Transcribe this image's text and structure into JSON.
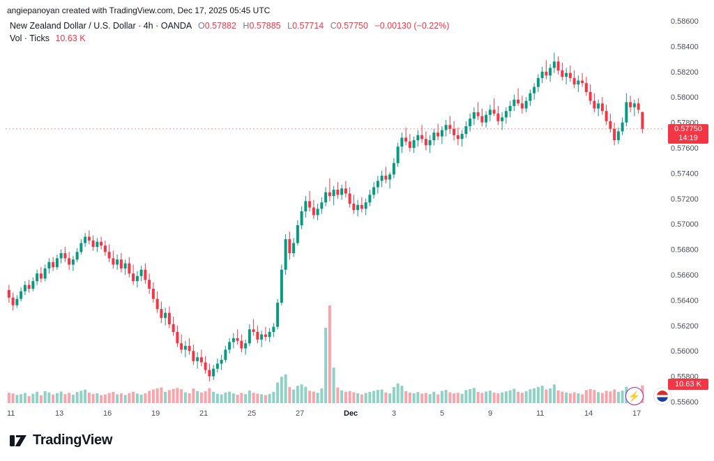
{
  "attribution": "angiepanoyan created with TradingView.com, Dec 17, 2025 05:45 UTC",
  "legend": {
    "title": "New Zealand Dollar / U.S. Dollar · 4h · OANDA",
    "ohlc": [
      {
        "label": "O",
        "value": "0.57882"
      },
      {
        "label": "H",
        "value": "0.57885"
      },
      {
        "label": "L",
        "value": "0.57714"
      },
      {
        "label": "C",
        "value": "0.57750"
      }
    ],
    "change": "−0.00130 (−0.22%)",
    "vol_label": "Vol · Ticks",
    "vol_value": "10.63 K"
  },
  "badges": {
    "last_price": "0.57750",
    "countdown": "14:19",
    "volume": "10.63 K"
  },
  "footer": {
    "logo_text": "TradingView"
  },
  "icons": {
    "lightning": "⚡"
  },
  "chart_data": {
    "type": "candlestick",
    "title": "New Zealand Dollar / U.S. Dollar",
    "symbol": "NZD/USD",
    "timeframe": "4h",
    "exchange": "OANDA",
    "legend_position": "top-left",
    "grid": false,
    "price_axis": {
      "min": 0.556,
      "max": 0.586,
      "tick_step": 0.002,
      "side": "right"
    },
    "last_price": 0.5775,
    "last_price_label": "0.57750",
    "countdown": "14:19",
    "current_volume": 10630,
    "colors": {
      "up": "#089981",
      "down": "#f23645",
      "vol_up": "rgba(8,153,129,0.45)",
      "vol_down": "rgba(242,54,69,0.45)",
      "badge": "#f23645"
    },
    "x_labels": [
      {
        "label": "11",
        "i": 0
      },
      {
        "label": "13",
        "i": 12
      },
      {
        "label": "16",
        "i": 24
      },
      {
        "label": "19",
        "i": 36
      },
      {
        "label": "21",
        "i": 48
      },
      {
        "label": "25",
        "i": 60
      },
      {
        "label": "27",
        "i": 72
      },
      {
        "label": "Dec",
        "i": 84,
        "bold": true
      },
      {
        "label": "3",
        "i": 96
      },
      {
        "label": "5",
        "i": 108
      },
      {
        "label": "9",
        "i": 120
      },
      {
        "label": "11",
        "i": 132
      },
      {
        "label": "14",
        "i": 144
      },
      {
        "label": "17",
        "i": 156
      }
    ],
    "candles": [
      [
        0.5648,
        0.5652,
        0.5638,
        0.5642,
        6200
      ],
      [
        0.5642,
        0.5646,
        0.5632,
        0.5636,
        5800
      ],
      [
        0.5636,
        0.5644,
        0.5634,
        0.5641,
        4900
      ],
      [
        0.5641,
        0.565,
        0.5639,
        0.5647,
        5300
      ],
      [
        0.5647,
        0.5655,
        0.5644,
        0.5652,
        6100
      ],
      [
        0.5652,
        0.5656,
        0.5646,
        0.5649,
        4200
      ],
      [
        0.5649,
        0.5658,
        0.5647,
        0.5655,
        5600
      ],
      [
        0.5655,
        0.5664,
        0.5652,
        0.5661,
        6800
      ],
      [
        0.5661,
        0.5666,
        0.5654,
        0.5657,
        4700
      ],
      [
        0.5657,
        0.5668,
        0.5655,
        0.5665,
        7200
      ],
      [
        0.5665,
        0.5673,
        0.5661,
        0.567,
        6400
      ],
      [
        0.567,
        0.5674,
        0.5663,
        0.5666,
        5100
      ],
      [
        0.5666,
        0.5676,
        0.5664,
        0.5673,
        6000
      ],
      [
        0.5673,
        0.568,
        0.5669,
        0.5677,
        6900
      ],
      [
        0.5677,
        0.5682,
        0.567,
        0.5673,
        5400
      ],
      [
        0.5673,
        0.5678,
        0.5664,
        0.5668,
        6200
      ],
      [
        0.5668,
        0.5675,
        0.5663,
        0.5672,
        5000
      ],
      [
        0.5672,
        0.5681,
        0.567,
        0.5678,
        6600
      ],
      [
        0.5678,
        0.5688,
        0.5676,
        0.5685,
        7400
      ],
      [
        0.5685,
        0.5693,
        0.5682,
        0.569,
        8100
      ],
      [
        0.569,
        0.5695,
        0.5684,
        0.5687,
        6300
      ],
      [
        0.5687,
        0.5691,
        0.5679,
        0.5682,
        5500
      ],
      [
        0.5682,
        0.5689,
        0.5678,
        0.5686,
        5900
      ],
      [
        0.5686,
        0.569,
        0.568,
        0.5683,
        4800
      ],
      [
        0.5683,
        0.5687,
        0.5675,
        0.5678,
        5200
      ],
      [
        0.5678,
        0.5684,
        0.567,
        0.5673,
        6100
      ],
      [
        0.5673,
        0.5679,
        0.5665,
        0.5668,
        6700
      ],
      [
        0.5668,
        0.5676,
        0.5664,
        0.5672,
        5300
      ],
      [
        0.5672,
        0.5677,
        0.5662,
        0.5665,
        5800
      ],
      [
        0.5665,
        0.5672,
        0.566,
        0.5669,
        4900
      ],
      [
        0.5669,
        0.5674,
        0.5658,
        0.5661,
        6000
      ],
      [
        0.5661,
        0.5668,
        0.5652,
        0.5655,
        6800
      ],
      [
        0.5655,
        0.5663,
        0.565,
        0.5659,
        5700
      ],
      [
        0.5659,
        0.5667,
        0.5655,
        0.5664,
        5100
      ],
      [
        0.5664,
        0.5669,
        0.5653,
        0.5656,
        5900
      ],
      [
        0.5656,
        0.5661,
        0.5645,
        0.5649,
        7300
      ],
      [
        0.5649,
        0.5654,
        0.5638,
        0.5641,
        8200
      ],
      [
        0.5641,
        0.5647,
        0.563,
        0.5633,
        8800
      ],
      [
        0.5633,
        0.5639,
        0.5622,
        0.5626,
        9400
      ],
      [
        0.5626,
        0.5634,
        0.562,
        0.563,
        6700
      ],
      [
        0.563,
        0.5635,
        0.5618,
        0.5621,
        7800
      ],
      [
        0.5621,
        0.5627,
        0.5612,
        0.5615,
        8500
      ],
      [
        0.5615,
        0.562,
        0.5603,
        0.5606,
        9100
      ],
      [
        0.5606,
        0.5613,
        0.5598,
        0.5601,
        8300
      ],
      [
        0.5601,
        0.5608,
        0.5595,
        0.5604,
        6500
      ],
      [
        0.5604,
        0.561,
        0.5597,
        0.56,
        5900
      ],
      [
        0.56,
        0.5605,
        0.5589,
        0.5592,
        8700
      ],
      [
        0.5592,
        0.5599,
        0.5586,
        0.5595,
        7200
      ],
      [
        0.5595,
        0.5601,
        0.5588,
        0.5591,
        6400
      ],
      [
        0.5591,
        0.5596,
        0.5582,
        0.5585,
        7100
      ],
      [
        0.5585,
        0.559,
        0.5576,
        0.558,
        8900
      ],
      [
        0.558,
        0.5589,
        0.5577,
        0.5586,
        6800
      ],
      [
        0.5586,
        0.5594,
        0.5583,
        0.559,
        5600
      ],
      [
        0.559,
        0.5597,
        0.5585,
        0.5593,
        5200
      ],
      [
        0.5593,
        0.5604,
        0.5591,
        0.5601,
        6300
      ],
      [
        0.5601,
        0.561,
        0.5598,
        0.5607,
        6900
      ],
      [
        0.5607,
        0.5614,
        0.5602,
        0.561,
        5800
      ],
      [
        0.561,
        0.5617,
        0.5605,
        0.5608,
        5000
      ],
      [
        0.5608,
        0.5613,
        0.5599,
        0.5602,
        6100
      ],
      [
        0.5602,
        0.5609,
        0.5597,
        0.5606,
        5400
      ],
      [
        0.5606,
        0.5621,
        0.5604,
        0.5617,
        7600
      ],
      [
        0.5617,
        0.5625,
        0.5612,
        0.5615,
        6200
      ],
      [
        0.5615,
        0.562,
        0.5606,
        0.5609,
        5700
      ],
      [
        0.5609,
        0.5616,
        0.5603,
        0.5613,
        5300
      ],
      [
        0.5613,
        0.5619,
        0.5608,
        0.5611,
        4800
      ],
      [
        0.5611,
        0.5618,
        0.5607,
        0.5615,
        5500
      ],
      [
        0.5615,
        0.5622,
        0.5611,
        0.5619,
        6800
      ],
      [
        0.5619,
        0.5641,
        0.5617,
        0.5638,
        12400
      ],
      [
        0.5638,
        0.5668,
        0.5636,
        0.5664,
        15800
      ],
      [
        0.5664,
        0.5692,
        0.566,
        0.5688,
        17200
      ],
      [
        0.5688,
        0.5694,
        0.5672,
        0.5677,
        9600
      ],
      [
        0.5677,
        0.5689,
        0.5674,
        0.5685,
        8100
      ],
      [
        0.5685,
        0.5703,
        0.5683,
        0.5699,
        10400
      ],
      [
        0.5699,
        0.5714,
        0.5696,
        0.571,
        11200
      ],
      [
        0.571,
        0.5722,
        0.5705,
        0.5718,
        9800
      ],
      [
        0.5718,
        0.5726,
        0.571,
        0.5713,
        7400
      ],
      [
        0.5713,
        0.5719,
        0.5704,
        0.5707,
        6900
      ],
      [
        0.5707,
        0.5716,
        0.5703,
        0.5712,
        6200
      ],
      [
        0.5712,
        0.5721,
        0.5708,
        0.5717,
        8800
      ],
      [
        0.5717,
        0.5729,
        0.5714,
        0.5725,
        45200
      ],
      [
        0.5725,
        0.5736,
        0.5718,
        0.5722,
        58600
      ],
      [
        0.5722,
        0.573,
        0.5715,
        0.5727,
        21300
      ],
      [
        0.5727,
        0.5733,
        0.572,
        0.5723,
        9400
      ],
      [
        0.5723,
        0.5731,
        0.5719,
        0.5728,
        7600
      ],
      [
        0.5728,
        0.5734,
        0.5721,
        0.5724,
        6800
      ],
      [
        0.5724,
        0.5729,
        0.5713,
        0.5716,
        7200
      ],
      [
        0.5716,
        0.5723,
        0.5708,
        0.5711,
        6500
      ],
      [
        0.5711,
        0.5719,
        0.5706,
        0.5715,
        5900
      ],
      [
        0.5715,
        0.5721,
        0.5709,
        0.5712,
        5200
      ],
      [
        0.5712,
        0.572,
        0.5707,
        0.5717,
        6100
      ],
      [
        0.5717,
        0.5727,
        0.5714,
        0.5723,
        6700
      ],
      [
        0.5723,
        0.5733,
        0.572,
        0.5729,
        7300
      ],
      [
        0.5729,
        0.5738,
        0.5724,
        0.5734,
        7900
      ],
      [
        0.5734,
        0.5742,
        0.5729,
        0.5738,
        8200
      ],
      [
        0.5738,
        0.5745,
        0.5732,
        0.5735,
        6400
      ],
      [
        0.5735,
        0.5741,
        0.5728,
        0.5739,
        5800
      ],
      [
        0.5739,
        0.5752,
        0.5736,
        0.5748,
        9600
      ],
      [
        0.5748,
        0.5764,
        0.5745,
        0.5761,
        11800
      ],
      [
        0.5761,
        0.5772,
        0.5756,
        0.5768,
        10400
      ],
      [
        0.5768,
        0.5776,
        0.5762,
        0.5765,
        7100
      ],
      [
        0.5765,
        0.5771,
        0.5757,
        0.576,
        6300
      ],
      [
        0.576,
        0.5769,
        0.5756,
        0.5766,
        5900
      ],
      [
        0.5766,
        0.5774,
        0.5761,
        0.577,
        6600
      ],
      [
        0.577,
        0.5778,
        0.5764,
        0.5767,
        5700
      ],
      [
        0.5767,
        0.5773,
        0.5758,
        0.5762,
        6100
      ],
      [
        0.5762,
        0.577,
        0.5756,
        0.5766,
        5400
      ],
      [
        0.5766,
        0.5775,
        0.5762,
        0.5772,
        6800
      ],
      [
        0.5772,
        0.5779,
        0.5766,
        0.5769,
        5200
      ],
      [
        0.5769,
        0.5777,
        0.5763,
        0.5774,
        7300
      ],
      [
        0.5774,
        0.5782,
        0.5769,
        0.5778,
        7900
      ],
      [
        0.5778,
        0.5785,
        0.5771,
        0.5775,
        6500
      ],
      [
        0.5775,
        0.5781,
        0.5766,
        0.577,
        5800
      ],
      [
        0.577,
        0.5776,
        0.5762,
        0.5767,
        6200
      ],
      [
        0.5767,
        0.5774,
        0.5761,
        0.5771,
        5600
      ],
      [
        0.5771,
        0.5781,
        0.5768,
        0.5777,
        7800
      ],
      [
        0.5777,
        0.5787,
        0.5773,
        0.5783,
        8400
      ],
      [
        0.5783,
        0.5792,
        0.5778,
        0.5788,
        9100
      ],
      [
        0.5788,
        0.5796,
        0.5782,
        0.5785,
        6700
      ],
      [
        0.5785,
        0.5791,
        0.5777,
        0.578,
        6100
      ],
      [
        0.578,
        0.5789,
        0.5776,
        0.5786,
        6900
      ],
      [
        0.5786,
        0.5794,
        0.5781,
        0.579,
        7500
      ],
      [
        0.579,
        0.5799,
        0.5785,
        0.5787,
        6300
      ],
      [
        0.5787,
        0.5793,
        0.5778,
        0.5781,
        5900
      ],
      [
        0.5781,
        0.5788,
        0.5774,
        0.5784,
        6400
      ],
      [
        0.5784,
        0.5792,
        0.5779,
        0.5789,
        7000
      ],
      [
        0.5789,
        0.5797,
        0.5784,
        0.5793,
        7700
      ],
      [
        0.5793,
        0.5802,
        0.5789,
        0.5798,
        8600
      ],
      [
        0.5798,
        0.5807,
        0.5793,
        0.5795,
        6800
      ],
      [
        0.5795,
        0.5801,
        0.5787,
        0.5791,
        6200
      ],
      [
        0.5791,
        0.58,
        0.5788,
        0.5797,
        7100
      ],
      [
        0.5797,
        0.5806,
        0.5793,
        0.5803,
        8300
      ],
      [
        0.5803,
        0.5811,
        0.5798,
        0.5808,
        8900
      ],
      [
        0.5808,
        0.5818,
        0.5804,
        0.5815,
        9700
      ],
      [
        0.5815,
        0.5824,
        0.5811,
        0.582,
        10400
      ],
      [
        0.582,
        0.5829,
        0.5814,
        0.5817,
        8100
      ],
      [
        0.5817,
        0.5826,
        0.5812,
        0.5823,
        8800
      ],
      [
        0.5823,
        0.5835,
        0.5819,
        0.5828,
        11200
      ],
      [
        0.5828,
        0.5832,
        0.5818,
        0.5821,
        7600
      ],
      [
        0.5821,
        0.5827,
        0.5813,
        0.5816,
        6900
      ],
      [
        0.5816,
        0.5823,
        0.581,
        0.5819,
        6300
      ],
      [
        0.5819,
        0.5825,
        0.5812,
        0.5815,
        5800
      ],
      [
        0.5815,
        0.5821,
        0.5807,
        0.581,
        6500
      ],
      [
        0.581,
        0.5817,
        0.5804,
        0.5813,
        5900
      ],
      [
        0.5813,
        0.5819,
        0.5808,
        0.5811,
        5300
      ],
      [
        0.5811,
        0.5816,
        0.5801,
        0.5804,
        7800
      ],
      [
        0.5804,
        0.581,
        0.5794,
        0.5797,
        8400
      ],
      [
        0.5797,
        0.5803,
        0.5788,
        0.5791,
        7900
      ],
      [
        0.5791,
        0.5798,
        0.5785,
        0.5795,
        6600
      ],
      [
        0.5795,
        0.58,
        0.5786,
        0.5789,
        6100
      ],
      [
        0.5789,
        0.5794,
        0.5778,
        0.5781,
        7400
      ],
      [
        0.5781,
        0.5787,
        0.5772,
        0.5775,
        7000
      ],
      [
        0.5775,
        0.578,
        0.5762,
        0.5766,
        8200
      ],
      [
        0.5766,
        0.5776,
        0.5763,
        0.5773,
        6800
      ],
      [
        0.5773,
        0.5784,
        0.577,
        0.578,
        7500
      ],
      [
        0.578,
        0.5803,
        0.5777,
        0.5796,
        9800
      ],
      [
        0.5796,
        0.5801,
        0.5788,
        0.5792,
        6400
      ],
      [
        0.5792,
        0.5798,
        0.5785,
        0.5795,
        5700
      ],
      [
        0.5795,
        0.5799,
        0.5787,
        0.579,
        5100
      ],
      [
        0.57882,
        0.57885,
        0.57714,
        0.5775,
        10630
      ]
    ]
  }
}
